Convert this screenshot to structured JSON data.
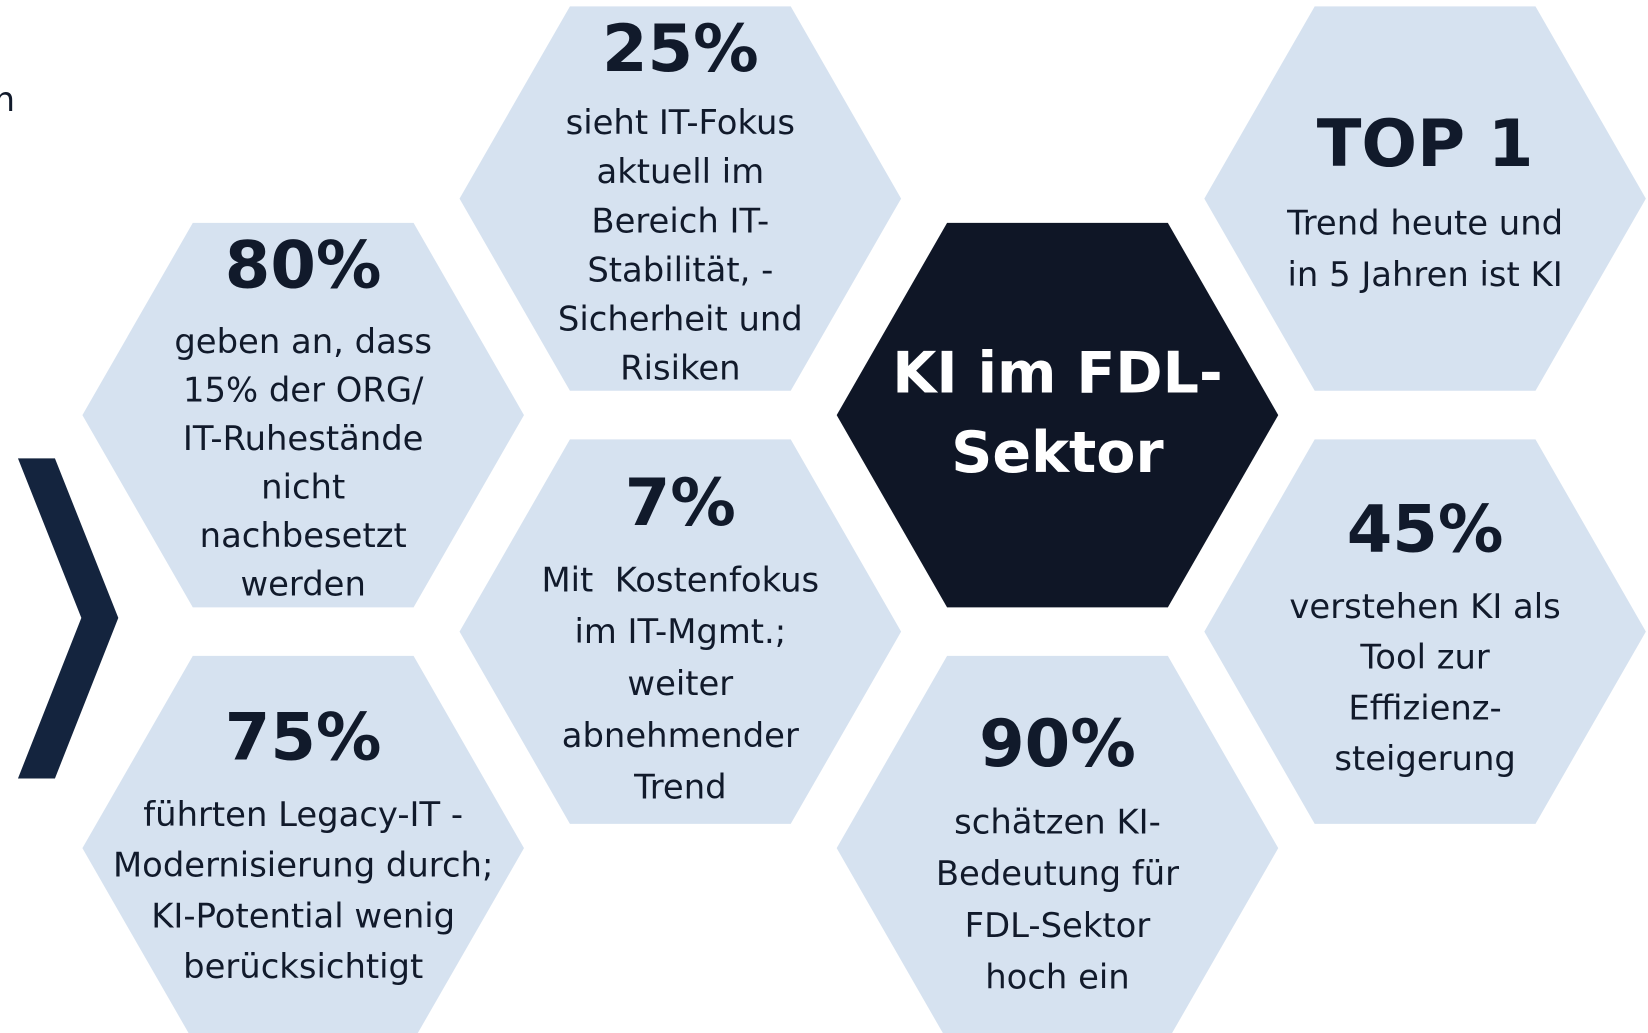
{
  "left_fragment": "n",
  "hexagons": [
    {
      "headline": "25%",
      "lines": [
        "sieht IT-Fokus",
        "aktuell im",
        "Bereich IT-",
        "Stabilität, -",
        "Sicherheit und",
        "Risiken"
      ]
    },
    {
      "headline": "80%",
      "lines": [
        "geben an, dass",
        "15% der ORG/",
        "IT-Ruhestände",
        "nicht",
        "nachbesetzt",
        "werden"
      ]
    },
    {
      "headline": "7%",
      "lines": [
        "Mit  Kostenfokus",
        "im IT-Mgmt.;",
        "weiter",
        "abnehmender",
        "Trend"
      ]
    },
    {
      "headline": "75%",
      "lines": [
        "führten Legacy-IT -",
        "Modernisierung durch;",
        "KI-Potential wenig",
        "berücksichtigt"
      ]
    },
    {
      "headline": "TOP 1",
      "lines": [
        "Trend heute und",
        "in 5 Jahren ist KI"
      ]
    },
    {
      "headline": "45%",
      "lines": [
        "verstehen KI als",
        "Tool zur",
        "Effizienz-",
        "steigerung"
      ]
    },
    {
      "headline": "90%",
      "lines": [
        "schätzen KI-",
        "Bedeutung für",
        "FDL-Sektor",
        "hoch ein"
      ]
    }
  ],
  "center_hexagon": {
    "lines": [
      "KI im FDL-",
      "Sektor"
    ]
  }
}
